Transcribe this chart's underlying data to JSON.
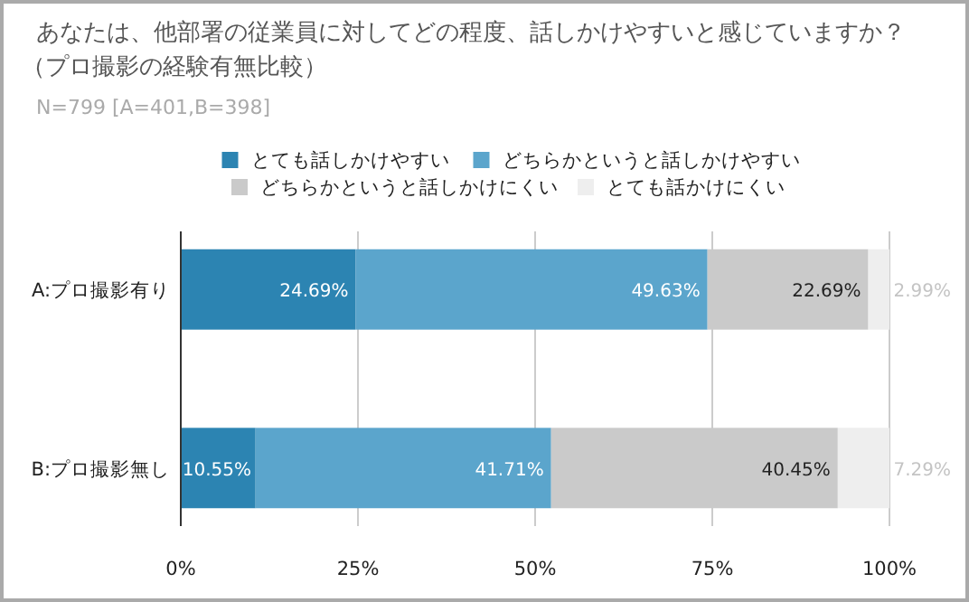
{
  "chart_data": {
    "type": "bar",
    "orientation": "horizontal",
    "stacked": true,
    "title": "あなたは、他部署の従業員に対してどの程度、話しかけやすいと感じていますか？（プロ撮影の経験有無比較）",
    "subtitle": "N=799 [A=401,B=398]",
    "categories": [
      "A:プロ撮影有り",
      "B:プロ撮影無し"
    ],
    "series": [
      {
        "name": "とても話しかけやすい",
        "color": "#2c84b2",
        "values": [
          24.69,
          10.55
        ],
        "value_labels": [
          "24.69%",
          "10.55%"
        ]
      },
      {
        "name": "どちらかというと話しかけやすい",
        "color": "#5ba5cc",
        "values": [
          49.63,
          41.71
        ],
        "value_labels": [
          "49.63%",
          "41.71%"
        ]
      },
      {
        "name": "どちらかというと話しかけにくい",
        "color": "#cacaca",
        "values": [
          22.69,
          40.45
        ],
        "value_labels": [
          "22.69%",
          "40.45%"
        ]
      },
      {
        "name": "とても話かけにくい",
        "color": "#eeeeee",
        "values": [
          2.99,
          7.29
        ],
        "value_labels": [
          "2.99%",
          "7.29%"
        ]
      }
    ],
    "xlim": [
      0,
      100
    ],
    "xticks": [
      {
        "value": 0,
        "label": "0%"
      },
      {
        "value": 25,
        "label": "25%"
      },
      {
        "value": 50,
        "label": "50%"
      },
      {
        "value": 75,
        "label": "75%"
      },
      {
        "value": 100,
        "label": "100%"
      }
    ],
    "grid": "x",
    "legend": "top"
  }
}
